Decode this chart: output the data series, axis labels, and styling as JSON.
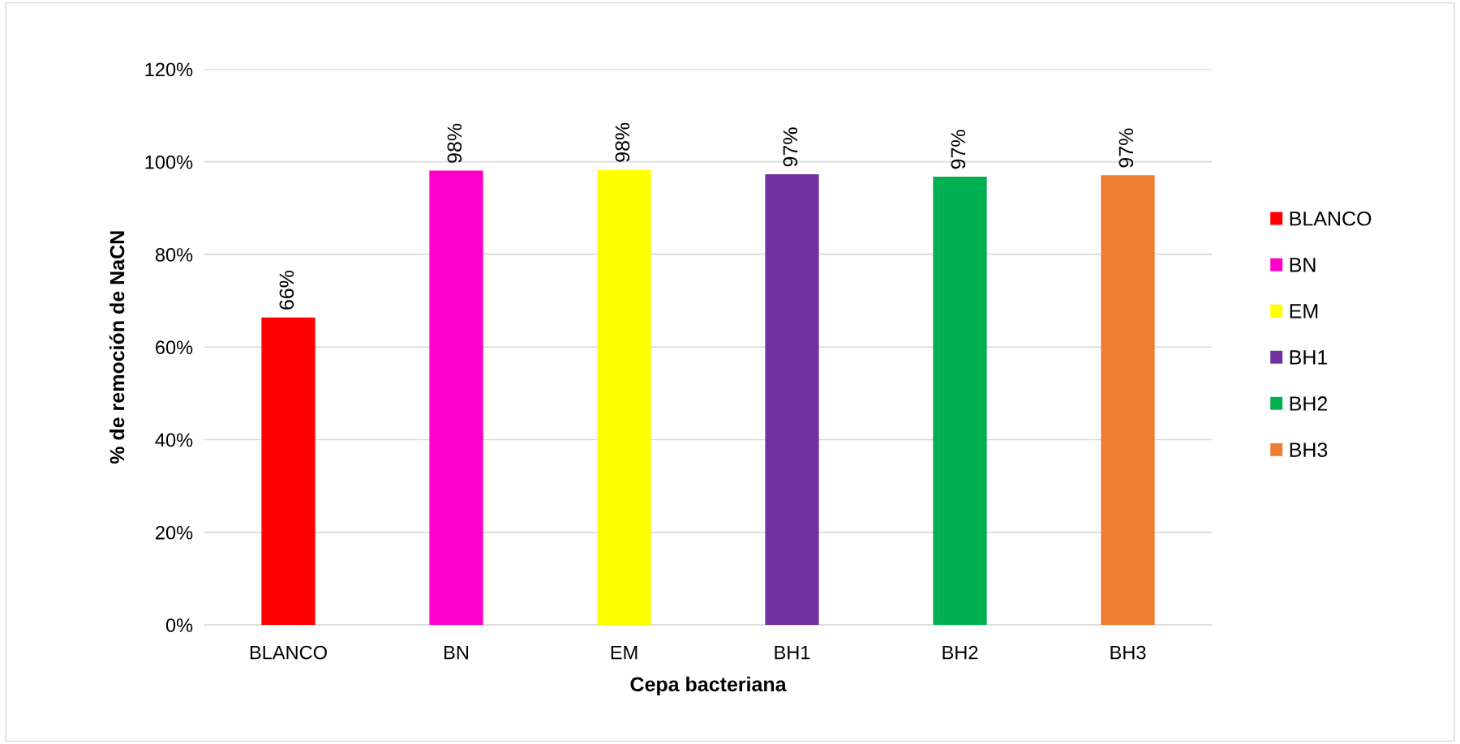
{
  "chart_data": {
    "type": "bar",
    "xlabel": "Cepa bacteriana",
    "ylabel": "% de remoción de NaCN",
    "categories": [
      "BLANCO",
      "BN",
      "EM",
      "BH1",
      "BH2",
      "BH3"
    ],
    "series": [
      {
        "name": "BLANCO",
        "color": "#ff0000",
        "values": [
          66.4,
          null,
          null,
          null,
          null,
          null
        ],
        "value_labels": [
          "66%",
          null,
          null,
          null,
          null,
          null
        ]
      },
      {
        "name": "BN",
        "color": "#ff00cc",
        "values": [
          null,
          98.1,
          null,
          null,
          null,
          null
        ],
        "value_labels": [
          null,
          "98%",
          null,
          null,
          null,
          null
        ]
      },
      {
        "name": "EM",
        "color": "#ffff00",
        "values": [
          null,
          null,
          98.3,
          null,
          null,
          null
        ],
        "value_labels": [
          null,
          null,
          "98%",
          null,
          null,
          null
        ]
      },
      {
        "name": "BH1",
        "color": "#7030a0",
        "values": [
          null,
          null,
          null,
          97.3,
          null,
          null
        ],
        "value_labels": [
          null,
          null,
          null,
          "97%",
          null,
          null
        ]
      },
      {
        "name": "BH2",
        "color": "#00b050",
        "values": [
          null,
          null,
          null,
          null,
          96.8,
          null
        ],
        "value_labels": [
          null,
          null,
          null,
          null,
          "97%",
          null
        ]
      },
      {
        "name": "BH3",
        "color": "#ed7d31",
        "values": [
          null,
          null,
          null,
          null,
          null,
          97.1
        ],
        "value_labels": [
          null,
          null,
          null,
          null,
          null,
          "97%"
        ]
      }
    ],
    "ylim": [
      0,
      120
    ],
    "yticks": [
      {
        "value": 0,
        "label": "0%"
      },
      {
        "value": 20,
        "label": "20%"
      },
      {
        "value": 40,
        "label": "40%"
      },
      {
        "value": 60,
        "label": "60%"
      },
      {
        "value": 80,
        "label": "80%"
      },
      {
        "value": 100,
        "label": "100%"
      },
      {
        "value": 120,
        "label": "120%"
      }
    ],
    "grid": "y",
    "legend": "right"
  }
}
